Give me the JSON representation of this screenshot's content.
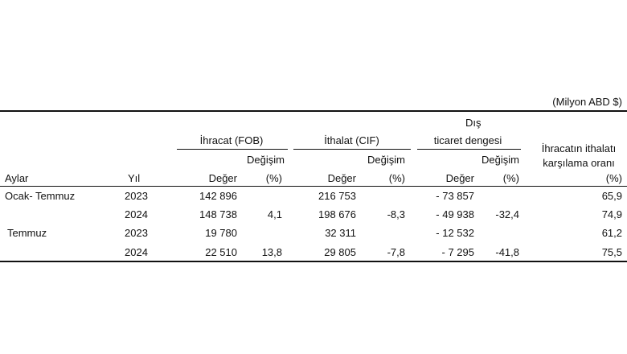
{
  "unit": "(Milyon ABD $)",
  "headers": {
    "ihracat": "İhracat (FOB)",
    "ithalat": "İthalat (CIF)",
    "dis_line1": "Dış",
    "dis_line2": "ticaret dengesi",
    "oran_line1": "İhracatın ithalatı",
    "oran_line2": "karşılama oranı",
    "oran_pct": "(%)",
    "degisim": "Değişim",
    "pct": "(%)",
    "aylar": "Aylar",
    "yil": "Yıl",
    "deger": "Değer"
  },
  "rows": [
    {
      "period": "Ocak- Temmuz",
      "year": "2023",
      "exp": "142 896",
      "exp_chg": "",
      "imp": "216 753",
      "imp_chg": "",
      "bal": "- 73 857",
      "bal_chg": "",
      "ratio": "65,9"
    },
    {
      "period": "",
      "year": "2024",
      "exp": "148 738",
      "exp_chg": "4,1",
      "imp": "198 676",
      "imp_chg": "-8,3",
      "bal": "- 49 938",
      "bal_chg": "-32,4",
      "ratio": "74,9"
    },
    {
      "period": "Temmuz",
      "year": "2023",
      "exp": "19 780",
      "exp_chg": "",
      "imp": "32 311",
      "imp_chg": "",
      "bal": "- 12 532",
      "bal_chg": "",
      "ratio": "61,2"
    },
    {
      "period": "",
      "year": "2024",
      "exp": "22 510",
      "exp_chg": "13,8",
      "imp": "29 805",
      "imp_chg": "-7,8",
      "bal": "- 7 295",
      "bal_chg": "-41,8",
      "ratio": "75,5"
    }
  ]
}
